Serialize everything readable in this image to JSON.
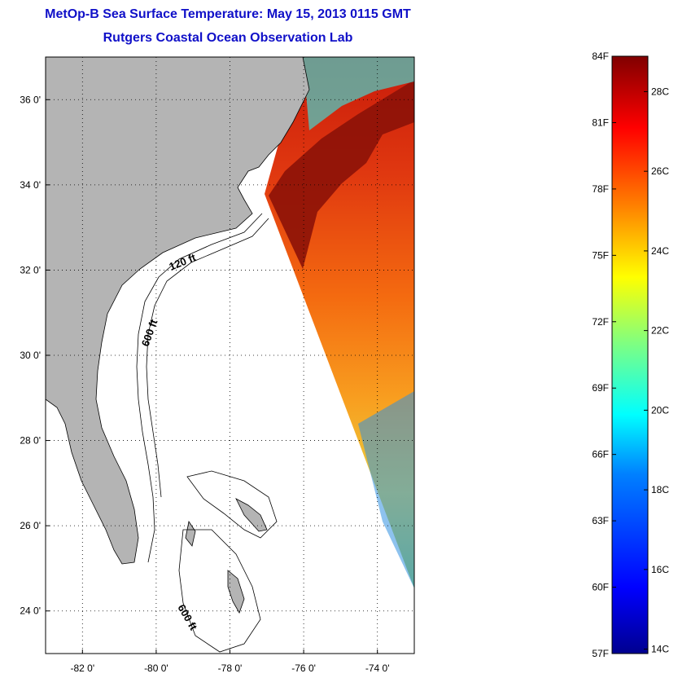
{
  "title_line1": "MetOp-B Sea Surface Temperature:  May 15, 2013 0115 GMT",
  "title_line2": "Rutgers Coastal Ocean Observation Lab",
  "map": {
    "lon_range": [
      -83,
      -73
    ],
    "lat_range": [
      23,
      37
    ],
    "lon_ticks": [
      {
        "value": -82,
        "label": "-82 0'"
      },
      {
        "value": -80,
        "label": "-80 0'"
      },
      {
        "value": -78,
        "label": "-78 0'"
      },
      {
        "value": -76,
        "label": "-76 0'"
      },
      {
        "value": -74,
        "label": "-74 0'"
      }
    ],
    "lat_ticks": [
      {
        "value": 36,
        "label": "36 0'"
      },
      {
        "value": 34,
        "label": "34 0'"
      },
      {
        "value": 32,
        "label": "32 0'"
      },
      {
        "value": 30,
        "label": "30 0'"
      },
      {
        "value": 28,
        "label": "28 0'"
      },
      {
        "value": 26,
        "label": "26 0'"
      },
      {
        "value": 24,
        "label": "24 0'"
      }
    ],
    "contour_labels": [
      "120 ft",
      "600 ft",
      "600 ft"
    ],
    "colors": {
      "land": "#b4b4b4",
      "grid": "#000000"
    }
  },
  "colorbar": {
    "f_range": [
      57,
      84
    ],
    "c_range": [
      14,
      29
    ],
    "fahrenheit_labels": [
      "84F",
      "81F",
      "78F",
      "75F",
      "72F",
      "69F",
      "66F",
      "63F",
      "60F",
      "57F"
    ],
    "celsius_labels": [
      "28C",
      "26C",
      "24C",
      "22C",
      "20C",
      "18C",
      "16C",
      "14C"
    ],
    "colors": [
      "#00008f",
      "#0000ff",
      "#0080ff",
      "#00ffff",
      "#80ff80",
      "#ffff00",
      "#ff8000",
      "#ff0000",
      "#800000"
    ]
  }
}
